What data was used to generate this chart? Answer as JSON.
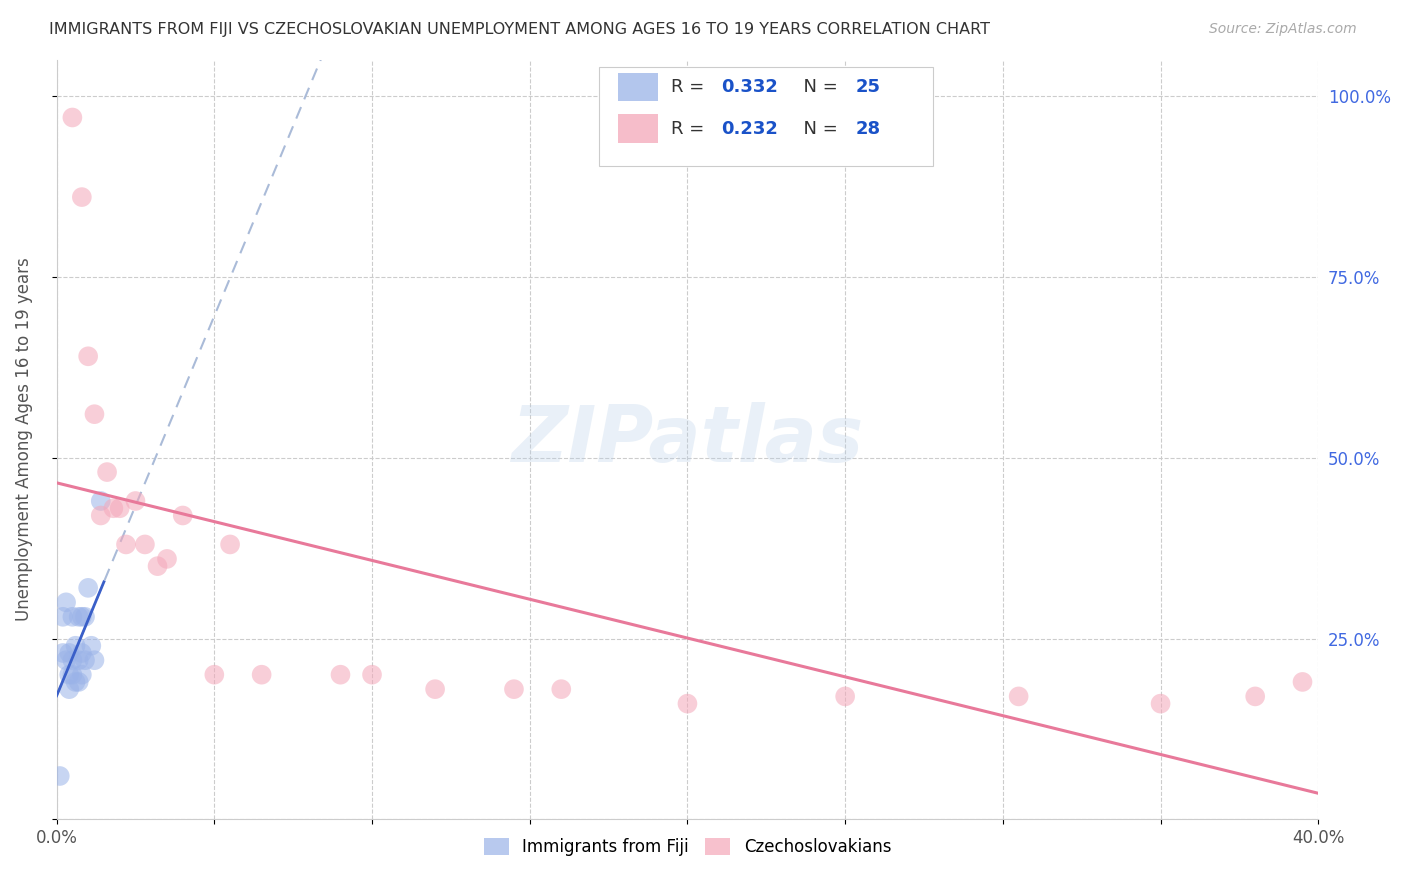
{
  "title": "IMMIGRANTS FROM FIJI VS CZECHOSLOVAKIAN UNEMPLOYMENT AMONG AGES 16 TO 19 YEARS CORRELATION CHART",
  "source": "Source: ZipAtlas.com",
  "ylabel": "Unemployment Among Ages 16 to 19 years",
  "xlim": [
    0.0,
    0.4
  ],
  "ylim": [
    0.0,
    1.05
  ],
  "fiji_R": 0.332,
  "fiji_N": 25,
  "czech_R": 0.232,
  "czech_N": 28,
  "fiji_color": "#9ab3e8",
  "czech_color": "#f4a7b9",
  "fiji_line_color": "#3a5fc8",
  "czech_line_color": "#e8799a",
  "fiji_dash_color": "#aabbd8",
  "watermark": "ZIPatlas",
  "fiji_x": [
    0.001,
    0.002,
    0.002,
    0.003,
    0.003,
    0.004,
    0.004,
    0.004,
    0.005,
    0.005,
    0.005,
    0.006,
    0.006,
    0.007,
    0.007,
    0.007,
    0.008,
    0.008,
    0.008,
    0.009,
    0.009,
    0.01,
    0.011,
    0.012,
    0.014
  ],
  "fiji_y": [
    0.06,
    0.28,
    0.23,
    0.3,
    0.22,
    0.2,
    0.23,
    0.18,
    0.2,
    0.28,
    0.22,
    0.19,
    0.24,
    0.28,
    0.22,
    0.19,
    0.28,
    0.23,
    0.2,
    0.28,
    0.22,
    0.32,
    0.24,
    0.22,
    0.44
  ],
  "czech_x": [
    0.005,
    0.008,
    0.01,
    0.012,
    0.014,
    0.016,
    0.018,
    0.02,
    0.022,
    0.025,
    0.028,
    0.032,
    0.035,
    0.04,
    0.05,
    0.055,
    0.065,
    0.09,
    0.1,
    0.12,
    0.145,
    0.16,
    0.2,
    0.25,
    0.305,
    0.35,
    0.38,
    0.395
  ],
  "czech_y": [
    0.97,
    0.86,
    0.64,
    0.56,
    0.42,
    0.48,
    0.43,
    0.43,
    0.38,
    0.44,
    0.38,
    0.35,
    0.36,
    0.42,
    0.2,
    0.38,
    0.2,
    0.2,
    0.2,
    0.18,
    0.18,
    0.18,
    0.16,
    0.17,
    0.17,
    0.16,
    0.17,
    0.19
  ]
}
